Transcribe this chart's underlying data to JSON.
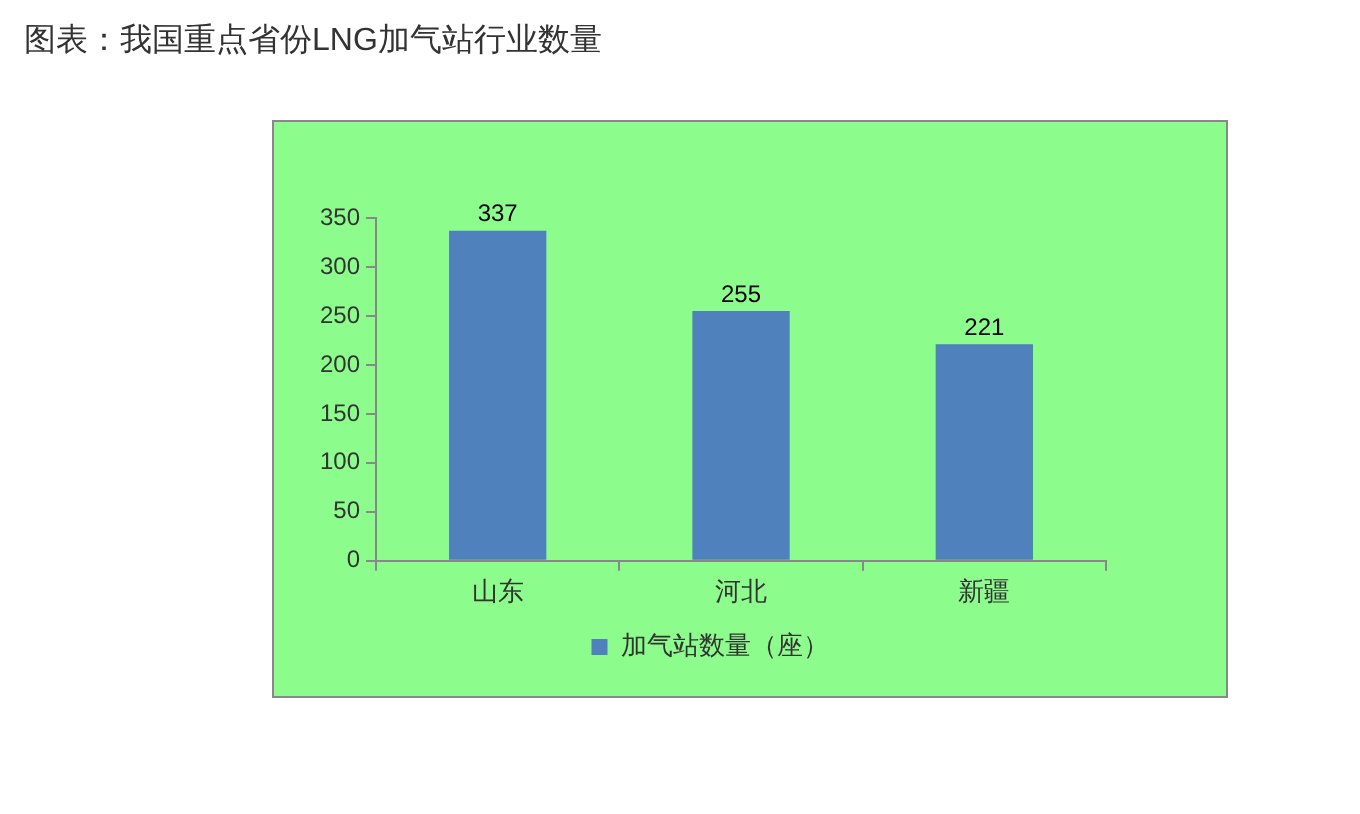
{
  "chart_data": {
    "type": "bar",
    "title": "图表：我国重点省份LNG加气站行业数量",
    "categories": [
      "山东",
      "河北",
      "新疆"
    ],
    "series": [
      {
        "name": "加气站数量（座）",
        "color": "#4f81bd",
        "values": [
          337,
          255,
          221
        ]
      }
    ],
    "ylim": [
      0,
      350
    ],
    "yticks": [
      0,
      50,
      100,
      150,
      200,
      250,
      300,
      350
    ],
    "grid": false,
    "legend": "bottom",
    "data_labels": true
  }
}
